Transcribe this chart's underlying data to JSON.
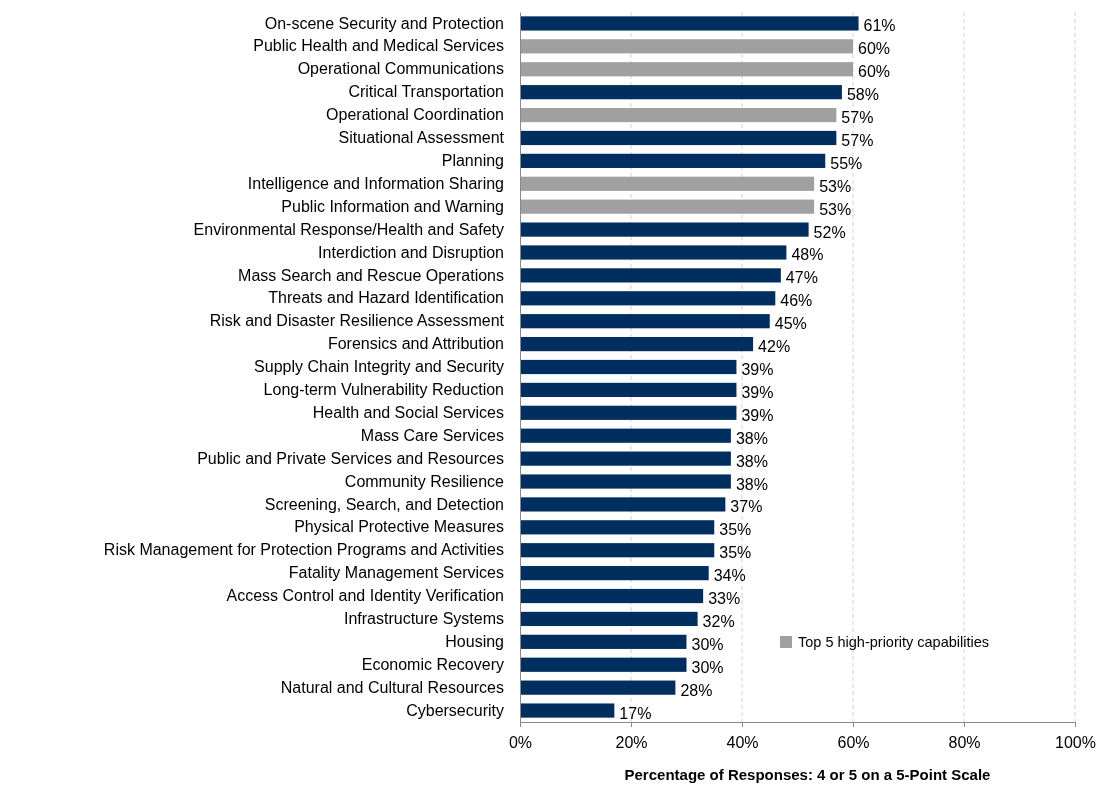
{
  "chart_data": {
    "type": "bar",
    "orientation": "horizontal",
    "categories": [
      "On-scene Security and Protection",
      "Public Health and Medical Services",
      "Operational Communications",
      "Critical Transportation",
      "Operational Coordination",
      "Situational Assessment",
      "Planning",
      "Intelligence and Information Sharing",
      "Public Information and Warning",
      "Environmental Response/Health and Safety",
      "Interdiction and Disruption",
      "Mass Search and Rescue Operations",
      "Threats and Hazard Identification",
      "Risk and Disaster Resilience Assessment",
      "Forensics and Attribution",
      "Supply Chain Integrity and Security",
      "Long-term Vulnerability Reduction",
      "Health and Social Services",
      "Mass Care Services",
      "Public and Private Services and Resources",
      "Community Resilience",
      "Screening, Search, and Detection",
      "Physical Protective Measures",
      "Risk Management for Protection Programs and Activities",
      "Fatality Management Services",
      "Access Control and Identity Verification",
      "Infrastructure Systems",
      "Housing",
      "Economic Recovery",
      "Natural and Cultural Resources",
      "Cybersecurity"
    ],
    "series": [
      {
        "color": "#002f5f",
        "values": [
          61,
          null,
          null,
          58,
          null,
          57,
          55,
          null,
          null,
          52,
          48,
          47,
          46,
          45,
          42,
          39,
          39,
          39,
          38,
          38,
          38,
          37,
          35,
          35,
          34,
          33,
          32,
          30,
          30,
          28,
          17
        ],
        "value_labels": [
          "61%",
          null,
          null,
          "58%",
          null,
          "57%",
          "55%",
          null,
          null,
          "52%",
          "48%",
          "47%",
          "46%",
          "45%",
          "42%",
          "39%",
          "39%",
          "39%",
          "38%",
          "38%",
          "38%",
          "37%",
          "35%",
          "35%",
          "34%",
          "33%",
          "32%",
          "30%",
          "30%",
          "28%",
          "17%"
        ]
      },
      {
        "name": "Top 5 high-priority capabilities",
        "color": "#a0a0a0",
        "values": [
          null,
          60,
          60,
          null,
          57,
          null,
          null,
          53,
          53,
          null,
          null,
          null,
          null,
          null,
          null,
          null,
          null,
          null,
          null,
          null,
          null,
          null,
          null,
          null,
          null,
          null,
          null,
          null,
          null,
          null,
          null
        ],
        "value_labels": [
          null,
          "60%",
          "60%",
          null,
          "57%",
          null,
          null,
          "53%",
          "53%",
          null,
          null,
          null,
          null,
          null,
          null,
          null,
          null,
          null,
          null,
          null,
          null,
          null,
          null,
          null,
          null,
          null,
          null,
          null,
          null,
          null,
          null
        ]
      }
    ],
    "xlim": [
      0,
      100
    ],
    "xticks": [
      {
        "value": 0,
        "label": "0%"
      },
      {
        "value": 20,
        "label": "20%"
      },
      {
        "value": 40,
        "label": "40%"
      },
      {
        "value": 60,
        "label": "60%"
      },
      {
        "value": 80,
        "label": "80%"
      },
      {
        "value": 100,
        "label": "100%"
      }
    ],
    "xlabel": "Percentage of Responses: 4 or 5 on a 5-Point Scale",
    "grid": "x",
    "legend": "bottom right"
  }
}
